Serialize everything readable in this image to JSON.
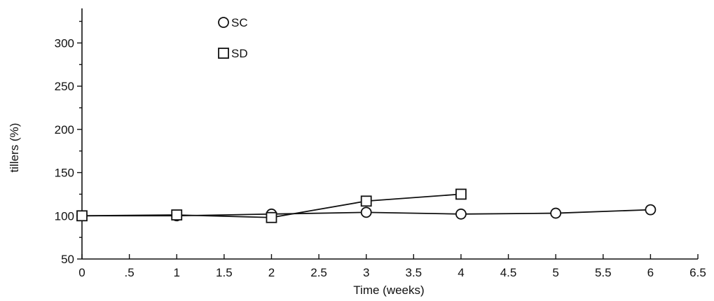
{
  "chart_data": {
    "type": "line",
    "xlabel": "Time (weeks)",
    "ylabel": "tillers (%)",
    "xlim": [
      0,
      6.5
    ],
    "ylim": [
      50,
      340
    ],
    "x_ticks": [
      0,
      0.5,
      1,
      1.5,
      2,
      2.5,
      3,
      3.5,
      4,
      4.5,
      5,
      5.5,
      6,
      6.5
    ],
    "x_tick_labels": [
      "0",
      ".5",
      "1",
      "1.5",
      "2",
      "2.5",
      "3",
      "3.5",
      "4",
      "4.5",
      "5",
      "5.5",
      "6",
      "6.5"
    ],
    "y_ticks": [
      50,
      100,
      150,
      200,
      250,
      300
    ],
    "y_tick_labels": [
      "50",
      "100",
      "150",
      "200",
      "250",
      "300"
    ],
    "grid": false,
    "legend": "top-center",
    "series": [
      {
        "name": "SC",
        "marker": "circle",
        "x": [
          0,
          1,
          2,
          3,
          4,
          5,
          6
        ],
        "y": [
          100,
          100,
          102,
          104,
          102,
          103,
          107
        ]
      },
      {
        "name": "SD",
        "marker": "square",
        "x": [
          0,
          1,
          2,
          3,
          4
        ],
        "y": [
          100,
          101,
          98,
          117,
          125
        ]
      }
    ]
  }
}
